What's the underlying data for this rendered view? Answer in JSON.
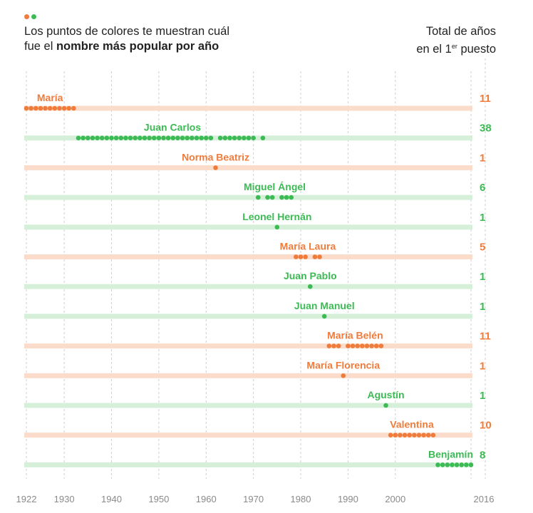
{
  "header": {
    "subtitle_line1": "Los puntos de colores te muestran cuál",
    "subtitle_line2_prefix": "fue el ",
    "subtitle_line2_bold": "nombre más popular por año",
    "total_line1": "Total de años",
    "total_line2_prefix": "en el 1",
    "total_line2_sup": "er",
    "total_line2_suffix": " puesto"
  },
  "colors": {
    "female": "#f07c3c",
    "male": "#3cba54",
    "female_band": "#fbdccb",
    "male_band": "#d5efd9",
    "grid": "#cfcfcf",
    "tick_text": "#8a8a8a"
  },
  "chart_data": {
    "type": "scatter",
    "x_ticks": [
      "1922",
      "1930",
      "1940",
      "1950",
      "1960",
      "1970",
      "1980",
      "1990",
      "2000",
      "2016"
    ],
    "xlim": [
      1922,
      2016
    ],
    "rows": [
      {
        "name": "María",
        "gender": "female",
        "total": "11",
        "years": [
          1922,
          1923,
          1924,
          1925,
          1926,
          1927,
          1928,
          1929,
          1930,
          1931,
          1932
        ]
      },
      {
        "name": "Juan Carlos",
        "gender": "male",
        "total": "38",
        "years": [
          1933,
          1934,
          1935,
          1936,
          1937,
          1938,
          1939,
          1940,
          1941,
          1942,
          1943,
          1944,
          1945,
          1946,
          1947,
          1948,
          1949,
          1950,
          1951,
          1952,
          1953,
          1954,
          1955,
          1956,
          1957,
          1958,
          1959,
          1960,
          1961,
          1963,
          1964,
          1965,
          1966,
          1967,
          1968,
          1969,
          1970,
          1972
        ]
      },
      {
        "name": "Norma Beatriz",
        "gender": "female",
        "total": "1",
        "years": [
          1962
        ]
      },
      {
        "name": "Miguel Ángel",
        "gender": "male",
        "total": "6",
        "years": [
          1971,
          1973,
          1974,
          1976,
          1977,
          1978
        ]
      },
      {
        "name": "Leonel Hernán",
        "gender": "male",
        "total": "1",
        "years": [
          1975
        ]
      },
      {
        "name": "María Laura",
        "gender": "female",
        "total": "5",
        "years": [
          1979,
          1980,
          1981,
          1983,
          1984
        ]
      },
      {
        "name": "Juan Pablo",
        "gender": "male",
        "total": "1",
        "years": [
          1982
        ]
      },
      {
        "name": "Juan Manuel",
        "gender": "male",
        "total": "1",
        "years": [
          1985
        ]
      },
      {
        "name": "María Belén",
        "gender": "female",
        "total": "11",
        "years": [
          1986,
          1987,
          1988,
          1990,
          1991,
          1992,
          1993,
          1994,
          1995,
          1996,
          1997
        ]
      },
      {
        "name": "María Florencia",
        "gender": "female",
        "total": "1",
        "years": [
          1989
        ]
      },
      {
        "name": "Agustín",
        "gender": "male",
        "total": "1",
        "years": [
          1998
        ]
      },
      {
        "name": "Valentina",
        "gender": "female",
        "total": "10",
        "years": [
          1999,
          2000,
          2001,
          2002,
          2003,
          2004,
          2005,
          2006,
          2007,
          2008
        ]
      },
      {
        "name": "Benjamín",
        "gender": "male",
        "total": "8",
        "years": [
          2009,
          2010,
          2011,
          2012,
          2013,
          2014,
          2015,
          2016
        ]
      }
    ]
  }
}
